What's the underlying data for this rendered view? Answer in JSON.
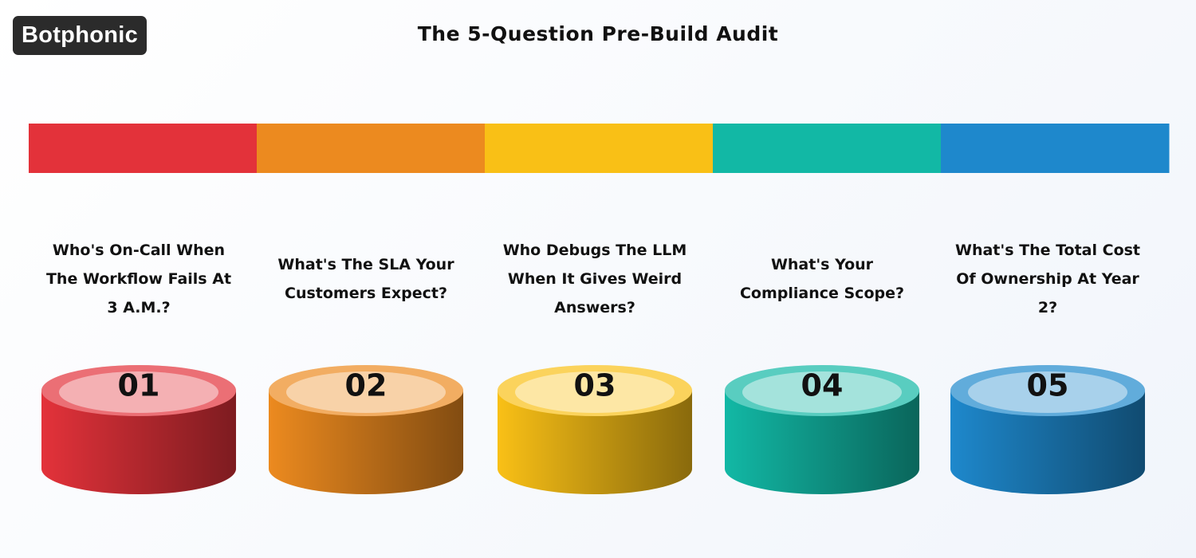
{
  "logo": "Botphonic",
  "title": "The 5-Question Pre-Build Audit",
  "steps": [
    {
      "number": "01",
      "question": "Who's On-Call When The Workflow Fails At 3 A.M.?",
      "color": "#e3323a"
    },
    {
      "number": "02",
      "question": "What's The SLA Your Customers Expect?",
      "color": "#ec8a1f"
    },
    {
      "number": "03",
      "question": "Who Debugs The LLM When It Gives Weird Answers?",
      "color": "#f9c016"
    },
    {
      "number": "04",
      "question": "What's Your Compliance Scope?",
      "color": "#12b8a5"
    },
    {
      "number": "05",
      "question": "What's The Total Cost Of Ownership At Year 2?",
      "color": "#1e88cc"
    }
  ]
}
